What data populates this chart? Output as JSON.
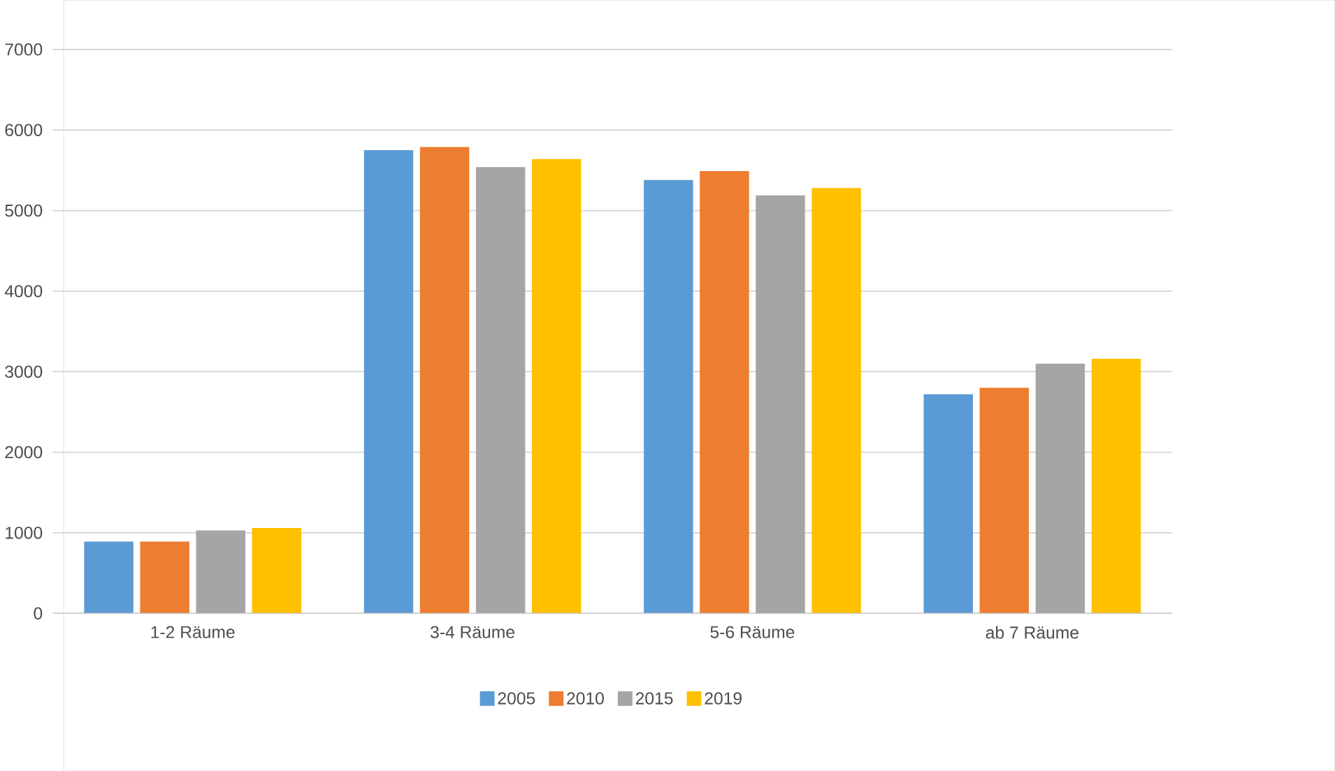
{
  "chart_data": {
    "type": "bar",
    "categories": [
      "1-2 Räume",
      "3-4 Räume",
      "5-6 Räume",
      "ab 7 Räume"
    ],
    "series": [
      {
        "name": "2005",
        "color": "#5b9bd5",
        "values": [
          890,
          5750,
          5380,
          2720
        ]
      },
      {
        "name": "2010",
        "color": "#ed7d31",
        "values": [
          890,
          5790,
          5490,
          2800
        ]
      },
      {
        "name": "2015",
        "color": "#a5a5a5",
        "values": [
          1030,
          5540,
          5190,
          3100
        ]
      },
      {
        "name": "2019",
        "color": "#ffc000",
        "values": [
          1060,
          5640,
          5280,
          3160
        ]
      }
    ],
    "ylim": [
      0,
      7000
    ],
    "yticks": [
      0,
      1000,
      2000,
      3000,
      4000,
      5000,
      6000,
      7000
    ],
    "grid": "y",
    "legend": "bottom"
  }
}
